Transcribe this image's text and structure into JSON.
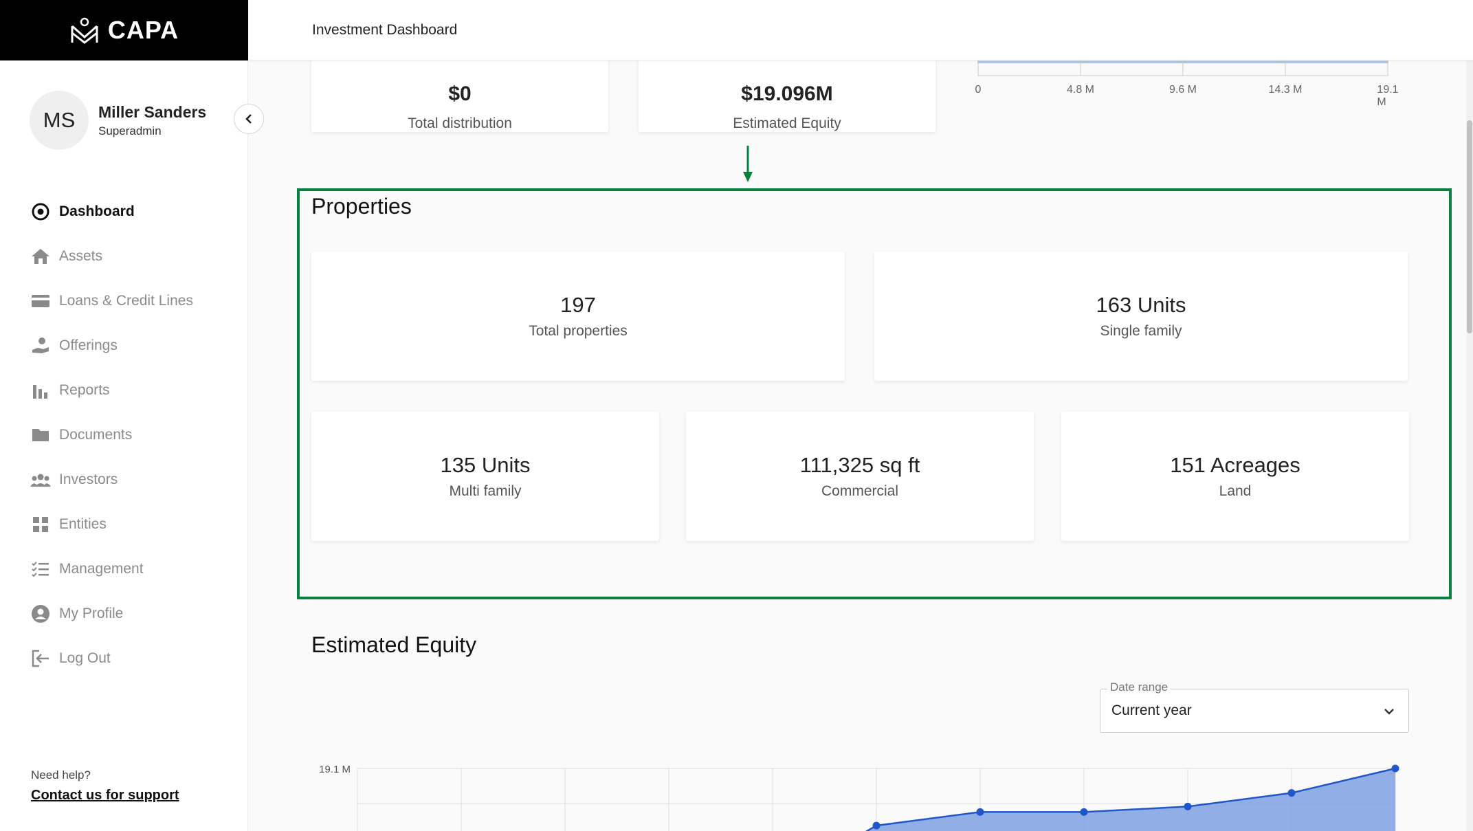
{
  "brand": {
    "name": "CAPA"
  },
  "topbar": {
    "title": "Investment Dashboard"
  },
  "user": {
    "initials": "MS",
    "name": "Miller Sanders",
    "role": "Superadmin"
  },
  "nav": {
    "items": [
      {
        "label": "Dashboard",
        "icon": "dashboard-icon",
        "active": true
      },
      {
        "label": "Assets",
        "icon": "home-icon"
      },
      {
        "label": "Loans & Credit Lines",
        "icon": "credit-card-icon"
      },
      {
        "label": "Offerings",
        "icon": "hand-coin-icon"
      },
      {
        "label": "Reports",
        "icon": "bar-chart-icon"
      },
      {
        "label": "Documents",
        "icon": "folder-icon"
      },
      {
        "label": "Investors",
        "icon": "group-icon"
      },
      {
        "label": "Entities",
        "icon": "grid-icon"
      },
      {
        "label": "Management",
        "icon": "checklist-icon"
      },
      {
        "label": "My Profile",
        "icon": "account-icon"
      },
      {
        "label": "Log Out",
        "icon": "logout-icon"
      }
    ]
  },
  "help": {
    "label": "Need help?",
    "link": "Contact us for support"
  },
  "summary": {
    "total_distribution": {
      "value": "$0",
      "label": "Total distribution"
    },
    "estimated_equity": {
      "value": "$19.096M",
      "label": "Estimated Equity"
    }
  },
  "mini_axis": {
    "ticks": [
      "0",
      "4.8 M",
      "9.6 M",
      "14.3 M",
      "19.1 M"
    ]
  },
  "properties": {
    "title": "Properties",
    "cards": [
      {
        "value": "197",
        "label": "Total properties"
      },
      {
        "value": "163 Units",
        "label": "Single family"
      },
      {
        "value": "135 Units",
        "label": "Multi family"
      },
      {
        "value": "111,325 sq ft",
        "label": "Commercial"
      },
      {
        "value": "151 Acreages",
        "label": "Land"
      }
    ]
  },
  "equity_section": {
    "title": "Estimated Equity",
    "date_range": {
      "label": "Date range",
      "value": "Current year"
    }
  },
  "chart_data": {
    "type": "area",
    "ylabel_tick": "19.1 M",
    "ylim": [
      0,
      19.1
    ],
    "x": [
      0,
      1,
      2,
      3,
      4,
      5,
      6,
      7,
      8,
      9,
      10
    ],
    "values": [
      null,
      null,
      null,
      null,
      null,
      17.0,
      17.5,
      17.5,
      17.7,
      18.2,
      19.1
    ],
    "series_color": "#1f57c8",
    "fill_color": "#7fa0e2"
  },
  "colors": {
    "accent": "#0a8040",
    "chart": "#1f57c8"
  }
}
